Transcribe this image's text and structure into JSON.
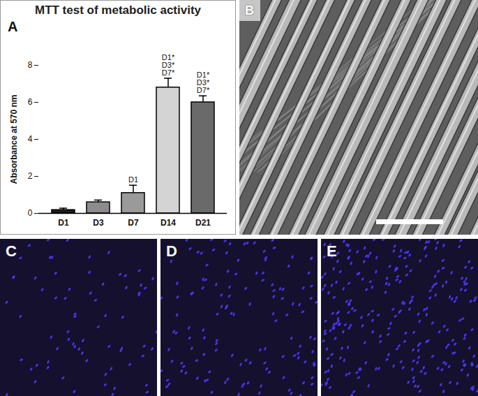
{
  "chart_data": {
    "type": "bar",
    "title": "MTT test of metabolic activity",
    "categories": [
      "D1",
      "D3",
      "D7",
      "D14",
      "D21"
    ],
    "values": [
      0.18,
      0.6,
      1.1,
      6.8,
      6.0
    ],
    "errors": [
      0.1,
      0.12,
      0.42,
      0.5,
      0.35
    ],
    "colors": [
      "#1c1c1c",
      "#8c8c8c",
      "#9a9a9a",
      "#d4d4d4",
      "#6a6a6a"
    ],
    "y_label": "Absorbance at 570 nm",
    "ylim": [
      0,
      8
    ],
    "yticks": [
      0,
      2,
      4,
      6,
      8
    ],
    "grid": false,
    "annotations": [
      {
        "category": "D7",
        "lines": [
          "D1"
        ]
      },
      {
        "category": "D14",
        "lines": [
          "D1*",
          "D3*",
          "D7*"
        ]
      },
      {
        "category": "D21",
        "lines": [
          "D1*",
          "D3*",
          "D7*"
        ]
      }
    ]
  },
  "panel_labels": [
    "A",
    "B",
    "C",
    "D",
    "E"
  ]
}
